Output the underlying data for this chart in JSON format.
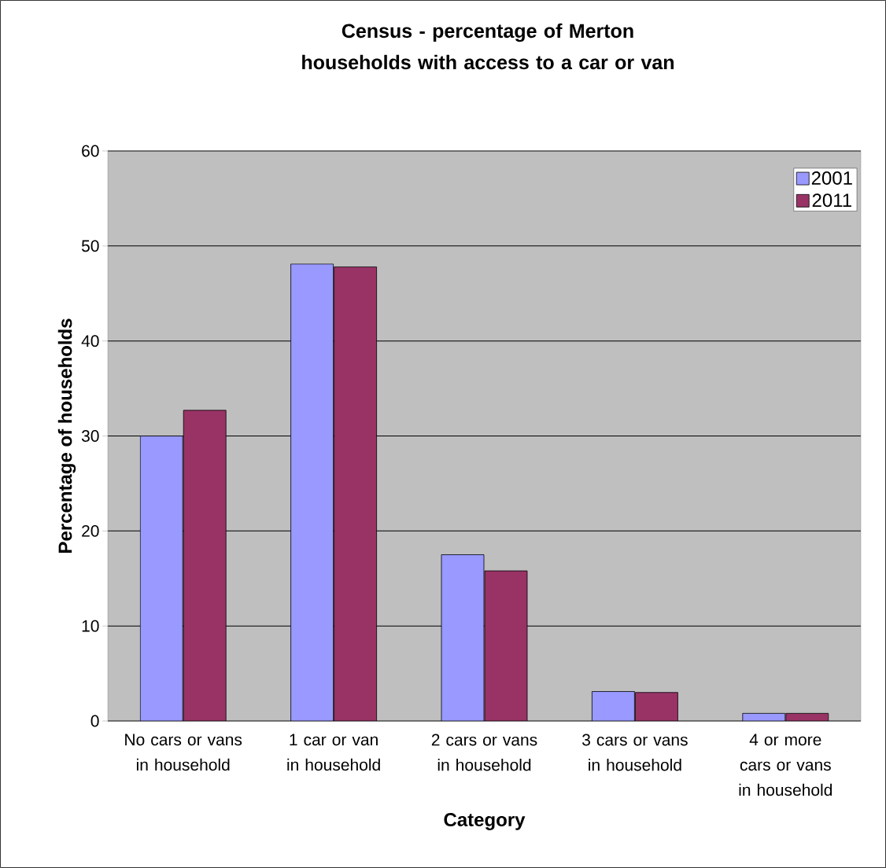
{
  "chart_data": {
    "type": "bar",
    "title": "**Census - percentage of Merton households with access to a car or van**",
    "xlabel": "**Category**",
    "ylabel": "**Percentage of households**",
    "categories": [
      "No cars or vans in household",
      "1 car or van in household",
      "2 cars or vans in household",
      "3 cars or vans in household",
      "4 or more cars or vans in household"
    ],
    "series": [
      {
        "name": "2001",
        "color": "#9999ff",
        "values": [
          30.0,
          48.1,
          17.5,
          3.1,
          0.8
        ]
      },
      {
        "name": "2011",
        "color": "#993366",
        "values": [
          32.7,
          47.8,
          15.8,
          3.0,
          0.8
        ]
      }
    ],
    "ylim": [
      0,
      60
    ],
    "yticks": [
      0,
      10,
      20,
      30,
      40,
      50,
      60
    ],
    "grid": "y",
    "legend": "top right"
  }
}
